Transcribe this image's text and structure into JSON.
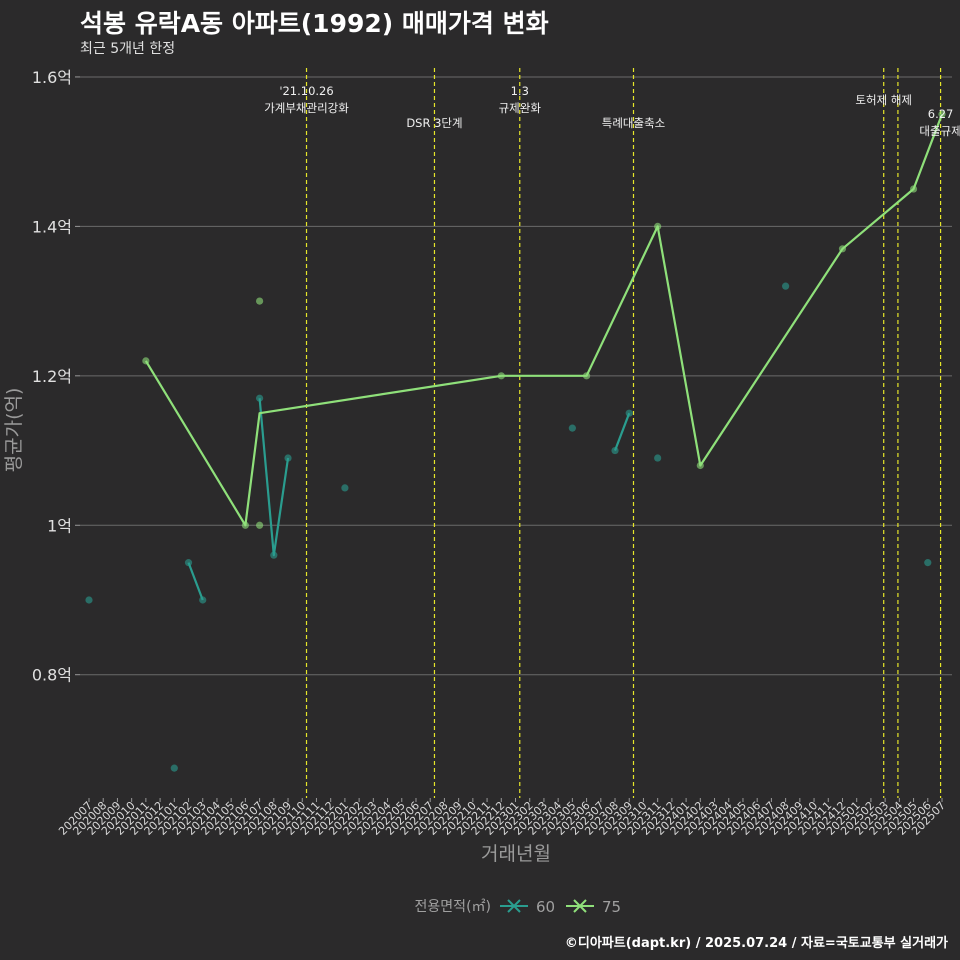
{
  "chart_data": {
    "type": "line",
    "title": "석봉 유락A동 아파트(1992) 매매가격 변화",
    "subtitle": "최근 5개년 한정",
    "xlabel": "거래년월",
    "ylabel": "평균가(억)",
    "caption": "©디아파트(dapt.kr) / 2025.07.24 / 자료=국토교통부 실거래가",
    "categories": [
      "202007",
      "202008",
      "202009",
      "202010",
      "202011",
      "202012",
      "202101",
      "202102",
      "202103",
      "202104",
      "202105",
      "202106",
      "202107",
      "202108",
      "202109",
      "202110",
      "202111",
      "202112",
      "202201",
      "202202",
      "202203",
      "202204",
      "202205",
      "202206",
      "202207",
      "202208",
      "202209",
      "202210",
      "202211",
      "202212",
      "202301",
      "202302",
      "202303",
      "202304",
      "202305",
      "202306",
      "202307",
      "202308",
      "202309",
      "202310",
      "202311",
      "202312",
      "202401",
      "202402",
      "202403",
      "202404",
      "202405",
      "202406",
      "202407",
      "202408",
      "202409",
      "202410",
      "202411",
      "202412",
      "202501",
      "202502",
      "202503",
      "202504",
      "202505",
      "202506",
      "202507"
    ],
    "y_ticks": [
      {
        "value": 0.8,
        "label": "0.8억"
      },
      {
        "value": 1.0,
        "label": "1억"
      },
      {
        "value": 1.2,
        "label": "1.2억"
      },
      {
        "value": 1.4,
        "label": "1.4억"
      },
      {
        "value": 1.6,
        "label": "1.6억"
      }
    ],
    "ylim": [
      0.635,
      1.62
    ],
    "series": [
      {
        "name": "60",
        "color": "#2a9d8f",
        "line": [
          [
            "202102",
            0.95
          ],
          [
            "202103",
            0.9
          ],
          null,
          [
            "202107",
            1.17
          ],
          [
            "202108",
            0.96
          ],
          [
            "202109",
            1.09
          ],
          null,
          [
            "202308",
            1.1
          ],
          [
            "202309",
            1.15
          ]
        ],
        "points": [
          [
            "202007",
            0.9
          ],
          [
            "202101",
            0.675
          ],
          [
            "202102",
            0.95
          ],
          [
            "202103",
            0.9
          ],
          [
            "202107",
            1.17
          ],
          [
            "202108",
            0.96
          ],
          [
            "202109",
            1.09
          ],
          [
            "202201",
            1.05
          ],
          [
            "202305",
            1.13
          ],
          [
            "202308",
            1.1
          ],
          [
            "202309",
            1.15
          ],
          [
            "202311",
            1.09
          ],
          [
            "202408",
            1.32
          ],
          [
            "202506",
            0.95
          ]
        ]
      },
      {
        "name": "75",
        "color": "#8fe07a",
        "line": [
          [
            "202011",
            1.22
          ],
          [
            "202106",
            1.0
          ],
          [
            "202107",
            1.15
          ],
          [
            "202212",
            1.2
          ],
          [
            "202306",
            1.2
          ],
          [
            "202311",
            1.4
          ],
          [
            "202402",
            1.08
          ],
          [
            "202412",
            1.37
          ],
          [
            "202505",
            1.45
          ],
          [
            "202507",
            1.55
          ]
        ],
        "points": [
          [
            "202011",
            1.22
          ],
          [
            "202106",
            1.0
          ],
          [
            "202107",
            1.3
          ],
          [
            "202107",
            1.0
          ],
          [
            "202212",
            1.2
          ],
          [
            "202306",
            1.2
          ],
          [
            "202311",
            1.4
          ],
          [
            "202402",
            1.08
          ],
          [
            "202412",
            1.37
          ],
          [
            "202505",
            1.45
          ],
          [
            "202507",
            1.55
          ]
        ]
      }
    ],
    "events": [
      {
        "x": 15.3,
        "lines": [
          "'21.10.26",
          "가계부채관리강화"
        ],
        "row": "top"
      },
      {
        "x": 24.3,
        "lines": [
          "DSR 3단계"
        ],
        "row": "bottom"
      },
      {
        "x": 30.3,
        "lines": [
          "1.3",
          "규제완화"
        ],
        "row": "top"
      },
      {
        "x": 38.3,
        "lines": [
          "특례대출축소"
        ],
        "row": "bottom"
      },
      {
        "x": 55.9,
        "lines": [
          "토허제 해제"
        ],
        "row": "mid"
      },
      {
        "x": 56.9,
        "lines": [],
        "row": "mid"
      },
      {
        "x": 59.9,
        "lines": [
          "6.27",
          "대출규제"
        ],
        "row": "low"
      }
    ],
    "legend": {
      "title": "전용면적(㎡)",
      "items": [
        "60",
        "75"
      ],
      "position": "bottom"
    }
  }
}
